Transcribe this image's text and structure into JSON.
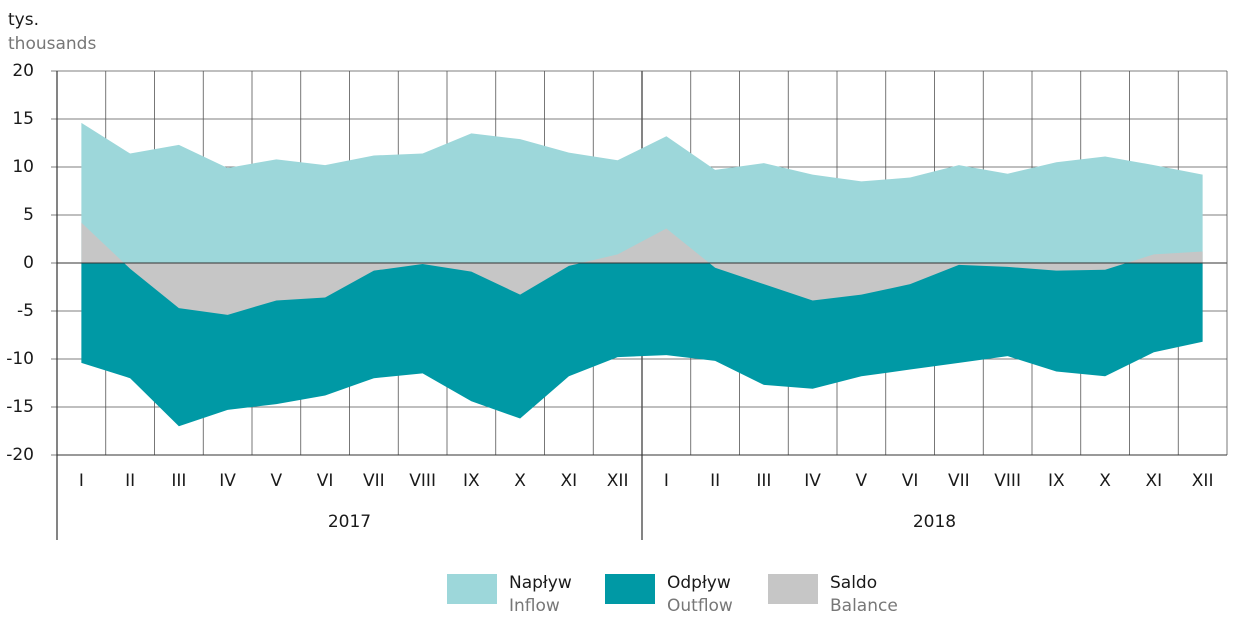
{
  "chart_data": {
    "type": "area",
    "unit_label": "tys.",
    "unit_label_en": "thousands",
    "categories": [
      "I",
      "II",
      "III",
      "IV",
      "V",
      "VI",
      "VII",
      "VIII",
      "IX",
      "X",
      "XI",
      "XII",
      "I",
      "II",
      "III",
      "IV",
      "V",
      "VI",
      "VII",
      "VIII",
      "IX",
      "X",
      "XI",
      "XII"
    ],
    "groups": [
      "2017",
      "2018"
    ],
    "series": [
      {
        "name": "Napływ",
        "name_en": "Inflow",
        "color": "#9dd7da",
        "values": [
          14.6,
          11.4,
          12.3,
          9.9,
          10.8,
          10.2,
          11.2,
          11.4,
          13.5,
          12.9,
          11.5,
          10.7,
          13.2,
          9.7,
          10.4,
          9.2,
          8.5,
          8.9,
          10.2,
          9.3,
          10.5,
          11.1,
          10.2,
          9.2
        ]
      },
      {
        "name": "Odpływ",
        "name_en": "Outflow",
        "color": "#0099a5",
        "values": [
          -10.4,
          -12.0,
          -17.0,
          -15.3,
          -14.7,
          -13.8,
          -12.0,
          -11.5,
          -14.4,
          -16.2,
          -11.8,
          -9.8,
          -9.6,
          -10.2,
          -12.7,
          -13.1,
          -11.8,
          -11.1,
          -10.4,
          -9.7,
          -11.3,
          -11.8,
          -9.3,
          -8.2
        ]
      },
      {
        "name": "Saldo",
        "name_en": "Balance",
        "color": "#c6c6c6",
        "values": [
          4.2,
          -0.6,
          -4.7,
          -5.4,
          -3.9,
          -3.6,
          -0.8,
          -0.1,
          -0.9,
          -3.3,
          -0.3,
          0.9,
          3.6,
          -0.5,
          -2.2,
          -3.9,
          -3.3,
          -2.2,
          -0.2,
          -0.4,
          -0.8,
          -0.7,
          0.9,
          1.2
        ]
      }
    ],
    "ylim": [
      -20,
      20
    ],
    "yticks": [
      -20,
      -15,
      -10,
      -5,
      0,
      5,
      10,
      15,
      20
    ],
    "grid": true
  }
}
